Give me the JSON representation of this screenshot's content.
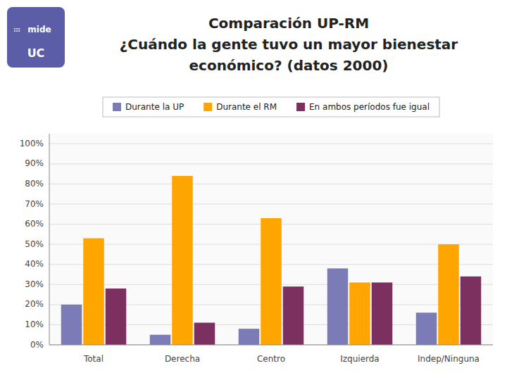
{
  "chart_data": {
    "type": "bar",
    "title": [
      "Comparación UP-RM",
      "¿Cuándo la gente tuvo un mayor bienestar",
      "económico? (datos 2000)"
    ],
    "annotations": [
      ":::",
      "mide",
      "UC"
    ],
    "categories": [
      "Total",
      "Derecha",
      "Centro",
      "Izquierda",
      "Indep/Ninguna"
    ],
    "series": [
      {
        "name": "Durante la UP",
        "color": "#7B7BB8",
        "values": [
          0.2,
          0.05,
          0.08,
          0.38,
          0.16
        ]
      },
      {
        "name": "Durante el RM",
        "color": "#FFA500",
        "values": [
          0.53,
          0.84,
          0.63,
          0.31,
          0.5
        ]
      },
      {
        "name": "En ambos períodos fue igual",
        "color": "#7B3060",
        "values": [
          0.28,
          0.11,
          0.29,
          0.31,
          0.34
        ]
      }
    ],
    "ylim": [
      0,
      1.05
    ],
    "yticks": [
      {
        "value": 0.0,
        "label": "0%"
      },
      {
        "value": 0.1,
        "label": "10%"
      },
      {
        "value": 0.2,
        "label": "20%"
      },
      {
        "value": 0.3,
        "label": "30%"
      },
      {
        "value": 0.4,
        "label": "40%"
      },
      {
        "value": 0.5,
        "label": "50%"
      },
      {
        "value": 0.6,
        "label": "60%"
      },
      {
        "value": 0.7,
        "label": "70%"
      },
      {
        "value": 0.8,
        "label": "80%"
      },
      {
        "value": 0.9,
        "label": "90%"
      },
      {
        "value": 1.0,
        "label": "100%"
      }
    ],
    "grid": true,
    "legend": "top"
  }
}
